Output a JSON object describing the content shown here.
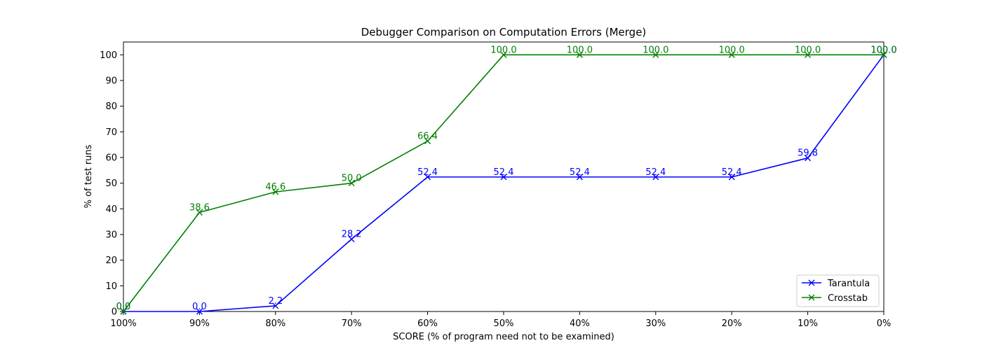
{
  "chart_data": {
    "type": "line",
    "title": "Debugger Comparison on Computation Errors (Merge)",
    "xlabel": "SCORE (% of program need not to be examined)",
    "ylabel": "% of test runs",
    "categories": [
      "100%",
      "90%",
      "80%",
      "70%",
      "60%",
      "50%",
      "40%",
      "30%",
      "20%",
      "10%",
      "0%"
    ],
    "ylim": [
      0,
      105
    ],
    "yticks": [
      0,
      10,
      20,
      30,
      40,
      50,
      60,
      70,
      80,
      90,
      100
    ],
    "grid": false,
    "legend_position": "lower-right",
    "series": [
      {
        "name": "Tarantula",
        "color": "#0000ff",
        "marker": "x",
        "values": [
          0.0,
          0.0,
          2.2,
          28.2,
          52.4,
          52.4,
          52.4,
          52.4,
          52.4,
          59.8,
          100.0
        ],
        "labels": [
          "0.0",
          "0.0",
          "2.2",
          "28.2",
          "52.4",
          "52.4",
          "52.4",
          "52.4",
          "52.4",
          "59.8",
          "100.0"
        ]
      },
      {
        "name": "Crosstab",
        "color": "#008000",
        "marker": "x",
        "values": [
          0.0,
          38.6,
          46.6,
          50.0,
          66.4,
          100.0,
          100.0,
          100.0,
          100.0,
          100.0,
          100.0
        ],
        "labels": [
          "0.0",
          "38.6",
          "46.6",
          "50.0",
          "66.4",
          "100.0",
          "100.0",
          "100.0",
          "100.0",
          "100.0",
          "100.0"
        ]
      }
    ]
  }
}
